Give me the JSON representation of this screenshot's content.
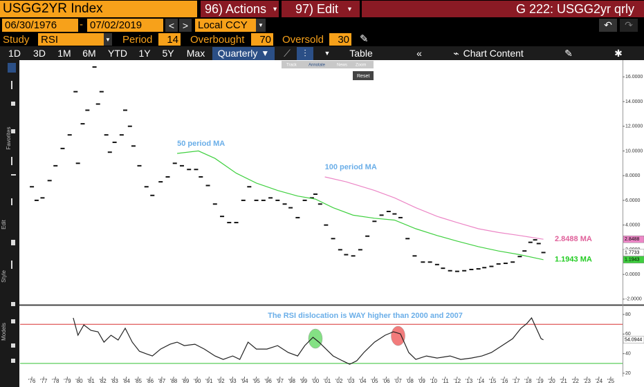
{
  "ui": {
    "ticker": "USGG2YR Index",
    "actions": "96) Actions",
    "edit": "97) Edit",
    "screen": "G 222: USGG2yr qrly",
    "start": "06/30/1976",
    "end": "07/02/2019",
    "currency": "Local CCY",
    "labels": {
      "study": "Study",
      "period": "Period",
      "overbought": "Overbought",
      "oversold": "Oversold"
    },
    "ranges": [
      "1D",
      "3D",
      "1M",
      "6M",
      "YTD",
      "1Y",
      "5Y",
      "Max"
    ],
    "frequency": "Quarterly",
    "table": "Table",
    "chart_content": "Chart Content",
    "tools": [
      "Track",
      "Annotate",
      "News",
      "Zoom"
    ],
    "reset": "Reset",
    "side": [
      "Favorites",
      "Edit",
      "Style",
      "Models"
    ]
  },
  "chart_data": [
    {
      "type": "line",
      "xlim": [
        1975,
        2026
      ],
      "ylim": [
        -2.4,
        17.3
      ],
      "yticks": [
        {
          "value": -2,
          "label": "-2.0000"
        },
        {
          "value": 0,
          "label": "0.0000"
        },
        {
          "value": 2,
          "label": "2.0000"
        },
        {
          "value": 4,
          "label": "4.0000"
        },
        {
          "value": 6,
          "label": "6.0000"
        },
        {
          "value": 8,
          "label": "8.0000"
        },
        {
          "value": 10,
          "label": "10.0000"
        },
        {
          "value": 12,
          "label": "12.0000"
        },
        {
          "value": 14,
          "label": "14.0000"
        },
        {
          "value": 16,
          "label": "16.0000"
        }
      ],
      "series": [
        {
          "color": "#111111",
          "marker": "dash",
          "x": [
            1976.0,
            1976.4,
            1976.9,
            1977.5,
            1978.0,
            1978.6,
            1979.2,
            1979.7,
            1979.9,
            1980.3,
            1980.7,
            1981.3,
            1981.6,
            1981.9,
            1982.3,
            1982.6,
            1983.0,
            1983.6,
            1983.9,
            1984.3,
            1984.6,
            1985.1,
            1985.7,
            1986.2,
            1986.9,
            1987.5,
            1988.1,
            1988.7,
            1989.3,
            1989.9,
            1990.3,
            1990.9,
            1991.5,
            1992.1,
            1992.7,
            1993.3,
            1993.9,
            1994.4,
            1995.0,
            1995.6,
            1996.2,
            1996.8,
            1997.4,
            1997.9,
            1998.5,
            1999.1,
            1999.7,
            2000.0,
            2000.4,
            2000.9,
            2001.5,
            2002.1,
            2002.6,
            2003.2,
            2003.8,
            2004.4,
            2005.0,
            2005.6,
            2006.2,
            2006.7,
            2007.2,
            2007.8,
            2008.4,
            2009.1,
            2009.7,
            2010.3,
            2010.8,
            2011.4,
            2012.0,
            2012.6,
            2013.2,
            2013.8,
            2014.3,
            2014.9,
            2015.5,
            2016.1,
            2016.7,
            2017.3,
            2017.7,
            2018.2,
            2018.6,
            2018.9,
            2019.3
          ],
          "values": [
            7.1,
            6.0,
            6.2,
            7.6,
            8.8,
            10.2,
            11.3,
            14.8,
            9.0,
            12.2,
            13.3,
            16.8,
            13.8,
            14.8,
            11.3,
            9.9,
            10.7,
            11.3,
            13.3,
            12.0,
            10.4,
            8.8,
            7.1,
            6.4,
            7.5,
            7.9,
            9.0,
            8.8,
            8.5,
            8.5,
            7.9,
            7.2,
            5.7,
            4.7,
            4.2,
            4.2,
            6.0,
            7.1,
            6.0,
            6.0,
            6.2,
            6.0,
            5.7,
            5.4,
            4.6,
            6.0,
            6.2,
            6.5,
            5.7,
            4.0,
            2.9,
            2.0,
            1.6,
            1.5,
            2.0,
            3.1,
            4.3,
            4.8,
            5.1,
            4.9,
            4.6,
            2.9,
            1.5,
            1.0,
            1.0,
            0.8,
            0.5,
            0.3,
            0.25,
            0.3,
            0.4,
            0.45,
            0.55,
            0.65,
            0.85,
            0.9,
            1.0,
            1.45,
            1.9,
            2.6,
            2.8,
            2.5,
            1.7733
          ],
          "tag_color": "#ffffff"
        },
        {
          "name": "50 period MA",
          "label_color": "#6aaee8",
          "color": "#3fd03f",
          "end_label": "1.1943 MA",
          "end_color": "#22cc22",
          "tag_color": "#3fd03f",
          "x": [
            1988.3,
            1990.1,
            1991.5,
            1993.3,
            1995.0,
            1996.8,
            1998.5,
            2000.0,
            2001.5,
            2003.2,
            2005.0,
            2006.7,
            2008.5,
            2010.3,
            2012.0,
            2013.8,
            2015.5,
            2017.3,
            2019.3
          ],
          "values": [
            9.8,
            10.0,
            9.4,
            8.2,
            7.4,
            6.8,
            6.35,
            6.1,
            5.4,
            4.8,
            4.55,
            4.4,
            3.7,
            3.15,
            2.7,
            2.25,
            1.9,
            1.6,
            1.1943
          ]
        },
        {
          "name": "100 period MA",
          "label_color": "#6aaee8",
          "color": "#ec86c6",
          "end_label": "2.8488 MA",
          "end_color": "#e0609a",
          "tag_color": "#ec86c6",
          "x": [
            2000.8,
            2002.6,
            2005.0,
            2006.7,
            2008.5,
            2010.3,
            2012.0,
            2013.8,
            2015.5,
            2017.3,
            2019.3
          ],
          "values": [
            7.9,
            7.5,
            6.8,
            6.2,
            5.4,
            4.7,
            4.2,
            3.7,
            3.4,
            3.15,
            2.8488
          ]
        }
      ]
    },
    {
      "type": "line",
      "study": "RSI",
      "period": 14,
      "overbought": 70,
      "oversold": 30,
      "annotation": "The RSI dislocation is WAY higher than 2000 and  2007",
      "xlim": [
        1975,
        2026
      ],
      "ylim": [
        16.5,
        88.5
      ],
      "yticks": [
        20,
        40,
        60,
        80
      ],
      "xticks": [
        {
          "value": 1976,
          "label": "'76"
        },
        {
          "value": 1977,
          "label": "'77"
        },
        {
          "value": 1978,
          "label": "'78"
        },
        {
          "value": 1979,
          "label": "'79"
        },
        {
          "value": 1980,
          "label": "'80"
        },
        {
          "value": 1981,
          "label": "'81"
        },
        {
          "value": 1982,
          "label": "'82"
        },
        {
          "value": 1983,
          "label": "'83"
        },
        {
          "value": 1984,
          "label": "'84"
        },
        {
          "value": 1985,
          "label": "'85"
        },
        {
          "value": 1986,
          "label": "'86"
        },
        {
          "value": 1987,
          "label": "'87"
        },
        {
          "value": 1988,
          "label": "'88"
        },
        {
          "value": 1989,
          "label": "'89"
        },
        {
          "value": 1990,
          "label": "'90"
        },
        {
          "value": 1991,
          "label": "'91"
        },
        {
          "value": 1992,
          "label": "'92"
        },
        {
          "value": 1993,
          "label": "'93"
        },
        {
          "value": 1994,
          "label": "'94"
        },
        {
          "value": 1995,
          "label": "'95"
        },
        {
          "value": 1996,
          "label": "'96"
        },
        {
          "value": 1997,
          "label": "'97"
        },
        {
          "value": 1998,
          "label": "'98"
        },
        {
          "value": 1999,
          "label": "'99"
        },
        {
          "value": 2000,
          "label": "'00"
        },
        {
          "value": 2001,
          "label": "'01"
        },
        {
          "value": 2002,
          "label": "'02"
        },
        {
          "value": 2003,
          "label": "'03"
        },
        {
          "value": 2004,
          "label": "'04"
        },
        {
          "value": 2005,
          "label": "'05"
        },
        {
          "value": 2006,
          "label": "'06"
        },
        {
          "value": 2007,
          "label": "'07"
        },
        {
          "value": 2008,
          "label": "'08"
        },
        {
          "value": 2009,
          "label": "'09"
        },
        {
          "value": 2010,
          "label": "'10"
        },
        {
          "value": 2011,
          "label": "'11"
        },
        {
          "value": 2012,
          "label": "'12"
        },
        {
          "value": 2013,
          "label": "'13"
        },
        {
          "value": 2014,
          "label": "'14"
        },
        {
          "value": 2015,
          "label": "'15"
        },
        {
          "value": 2016,
          "label": "'16"
        },
        {
          "value": 2017,
          "label": "'17"
        },
        {
          "value": 2018,
          "label": "'18"
        },
        {
          "value": 2019,
          "label": "'19"
        },
        {
          "value": 2020,
          "label": "'20"
        },
        {
          "value": 2021,
          "label": "'21"
        },
        {
          "value": 2022,
          "label": "'22"
        },
        {
          "value": 2023,
          "label": "'23"
        },
        {
          "value": 2024,
          "label": "'24"
        },
        {
          "value": 2025,
          "label": "'25"
        }
      ],
      "series": [
        {
          "color": "#222222",
          "tag_color": "#ffffff",
          "x": [
            1979.5,
            1979.9,
            1980.4,
            1981.0,
            1981.6,
            1982.1,
            1982.7,
            1983.3,
            1983.9,
            1984.5,
            1985.1,
            1985.7,
            1986.2,
            1986.9,
            1987.7,
            1988.3,
            1988.9,
            1989.8,
            1990.6,
            1991.5,
            1992.2,
            1993.0,
            1993.6,
            1994.3,
            1995.0,
            1995.9,
            1996.8,
            1997.7,
            1998.5,
            1999.1,
            1999.8,
            2000.3,
            2000.9,
            2001.5,
            2002.3,
            2002.9,
            2003.5,
            2004.1,
            2005.0,
            2005.9,
            2006.6,
            2007.2,
            2007.9,
            2008.5,
            2009.4,
            2010.3,
            2011.4,
            2012.3,
            2013.2,
            2014.1,
            2014.9,
            2015.8,
            2016.7,
            2017.4,
            2017.9,
            2018.3,
            2018.7,
            2019.1,
            2019.3
          ],
          "values": [
            76.5,
            58.8,
            69.4,
            63.7,
            62.3,
            51.7,
            58.8,
            53.9,
            65.9,
            51.7,
            42.5,
            39.7,
            37.6,
            44.7,
            49.6,
            51.7,
            48.2,
            49.6,
            44.7,
            37.6,
            34.1,
            37.6,
            34.1,
            51.7,
            44.7,
            44.7,
            48.2,
            41.1,
            37.6,
            48.2,
            56.7,
            51.7,
            44.7,
            37.6,
            32.7,
            29.1,
            32.7,
            41.1,
            51.7,
            58.8,
            62.3,
            60.2,
            41.1,
            34.1,
            37.6,
            35.5,
            37.6,
            34.1,
            35.5,
            37.6,
            41.1,
            48.2,
            55.3,
            65.9,
            70.8,
            76.5,
            65.9,
            55.3,
            54.0944
          ]
        }
      ],
      "highlights": [
        {
          "x": 2000.0,
          "y": 55.3,
          "color": "#6fdc6f"
        },
        {
          "x": 2007.0,
          "y": 58.1,
          "color": "#f06464"
        }
      ]
    }
  ]
}
